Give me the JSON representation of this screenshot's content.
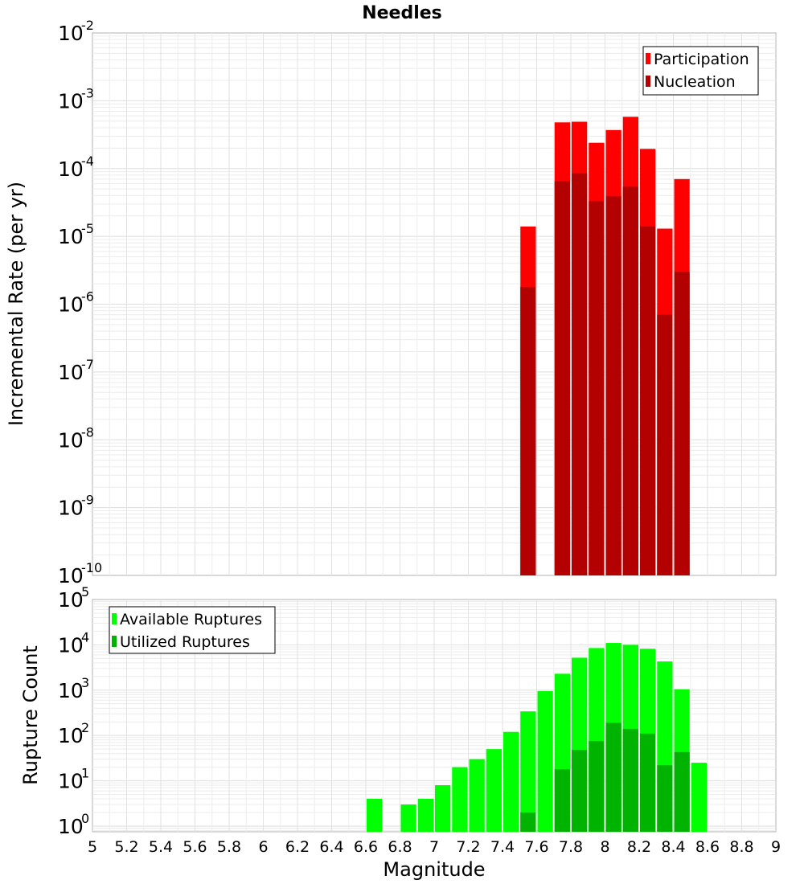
{
  "title": "Needles",
  "chart_data": [
    {
      "type": "bar",
      "name": "rate-panel",
      "ylabel": "Incremental Rate (per yr)",
      "xlabel": "",
      "yscale": "log",
      "ylim": [
        1e-10,
        0.01
      ],
      "xlim": [
        5,
        9
      ],
      "bar_width": 0.1,
      "y_tick_labels": [
        {
          "base": "10",
          "exp": "-10",
          "value": 1e-10
        },
        {
          "base": "10",
          "exp": "-9",
          "value": 1e-09
        },
        {
          "base": "10",
          "exp": "-8",
          "value": 1e-08
        },
        {
          "base": "10",
          "exp": "-7",
          "value": 1e-07
        },
        {
          "base": "10",
          "exp": "-6",
          "value": 1e-06
        },
        {
          "base": "10",
          "exp": "-5",
          "value": 1e-05
        },
        {
          "base": "10",
          "exp": "-4",
          "value": 0.0001
        },
        {
          "base": "10",
          "exp": "-3",
          "value": 0.001
        },
        {
          "base": "10",
          "exp": "-2",
          "value": 0.01
        }
      ],
      "legend_position": "top-right",
      "series": [
        {
          "name": "Participation",
          "color": "#ff0000",
          "points": [
            {
              "x": 7.55,
              "y": 1.4e-05
            },
            {
              "x": 7.75,
              "y": 0.00048
            },
            {
              "x": 7.85,
              "y": 0.00049
            },
            {
              "x": 7.95,
              "y": 0.00024
            },
            {
              "x": 8.05,
              "y": 0.00037
            },
            {
              "x": 8.15,
              "y": 0.00058
            },
            {
              "x": 8.25,
              "y": 0.000195
            },
            {
              "x": 8.35,
              "y": 1.3e-05
            },
            {
              "x": 8.45,
              "y": 7e-05
            }
          ]
        },
        {
          "name": "Nucleation",
          "color": "#b30000",
          "points": [
            {
              "x": 7.55,
              "y": 1.8e-06
            },
            {
              "x": 7.75,
              "y": 6.5e-05
            },
            {
              "x": 7.85,
              "y": 8.5e-05
            },
            {
              "x": 7.95,
              "y": 3.3e-05
            },
            {
              "x": 8.05,
              "y": 3.9e-05
            },
            {
              "x": 8.15,
              "y": 5.4e-05
            },
            {
              "x": 8.25,
              "y": 1.4e-05
            },
            {
              "x": 8.35,
              "y": 7e-07
            },
            {
              "x": 8.45,
              "y": 3e-06
            }
          ]
        }
      ]
    },
    {
      "type": "bar",
      "name": "count-panel",
      "ylabel": "Rupture Count",
      "xlabel": "Magnitude",
      "yscale": "log",
      "ylim": [
        0.75,
        100000
      ],
      "xlim": [
        5,
        9
      ],
      "bar_width": 0.1,
      "x_tick_labels": [
        "5",
        "5.2",
        "5.4",
        "5.6",
        "5.8",
        "6",
        "6.2",
        "6.4",
        "6.6",
        "6.8",
        "7",
        "7.2",
        "7.4",
        "7.6",
        "7.8",
        "8",
        "8.2",
        "8.4",
        "8.6",
        "8.8",
        "9"
      ],
      "y_tick_labels": [
        {
          "base": "10",
          "exp": "0",
          "value": 1
        },
        {
          "base": "10",
          "exp": "1",
          "value": 10
        },
        {
          "base": "10",
          "exp": "2",
          "value": 100
        },
        {
          "base": "10",
          "exp": "3",
          "value": 1000
        },
        {
          "base": "10",
          "exp": "4",
          "value": 10000
        },
        {
          "base": "10",
          "exp": "5",
          "value": 100000
        }
      ],
      "legend_position": "top-left",
      "series": [
        {
          "name": "Available Ruptures",
          "color": "#00ff00",
          "points": [
            {
              "x": 6.65,
              "y": 4
            },
            {
              "x": 6.85,
              "y": 3
            },
            {
              "x": 6.95,
              "y": 4
            },
            {
              "x": 7.05,
              "y": 8
            },
            {
              "x": 7.15,
              "y": 20
            },
            {
              "x": 7.25,
              "y": 30
            },
            {
              "x": 7.35,
              "y": 50
            },
            {
              "x": 7.45,
              "y": 120
            },
            {
              "x": 7.55,
              "y": 340
            },
            {
              "x": 7.65,
              "y": 950
            },
            {
              "x": 7.75,
              "y": 2300
            },
            {
              "x": 7.85,
              "y": 5200
            },
            {
              "x": 7.95,
              "y": 8500
            },
            {
              "x": 8.05,
              "y": 11000
            },
            {
              "x": 8.15,
              "y": 10000
            },
            {
              "x": 8.25,
              "y": 8200
            },
            {
              "x": 8.35,
              "y": 4300
            },
            {
              "x": 8.45,
              "y": 1050
            },
            {
              "x": 8.55,
              "y": 25
            }
          ]
        },
        {
          "name": "Utilized Ruptures",
          "color": "#00b300",
          "points": [
            {
              "x": 7.55,
              "y": 2
            },
            {
              "x": 7.75,
              "y": 18
            },
            {
              "x": 7.85,
              "y": 48
            },
            {
              "x": 7.95,
              "y": 75
            },
            {
              "x": 8.05,
              "y": 190
            },
            {
              "x": 8.15,
              "y": 140
            },
            {
              "x": 8.25,
              "y": 110
            },
            {
              "x": 8.35,
              "y": 22
            },
            {
              "x": 8.45,
              "y": 43
            }
          ]
        }
      ]
    }
  ]
}
